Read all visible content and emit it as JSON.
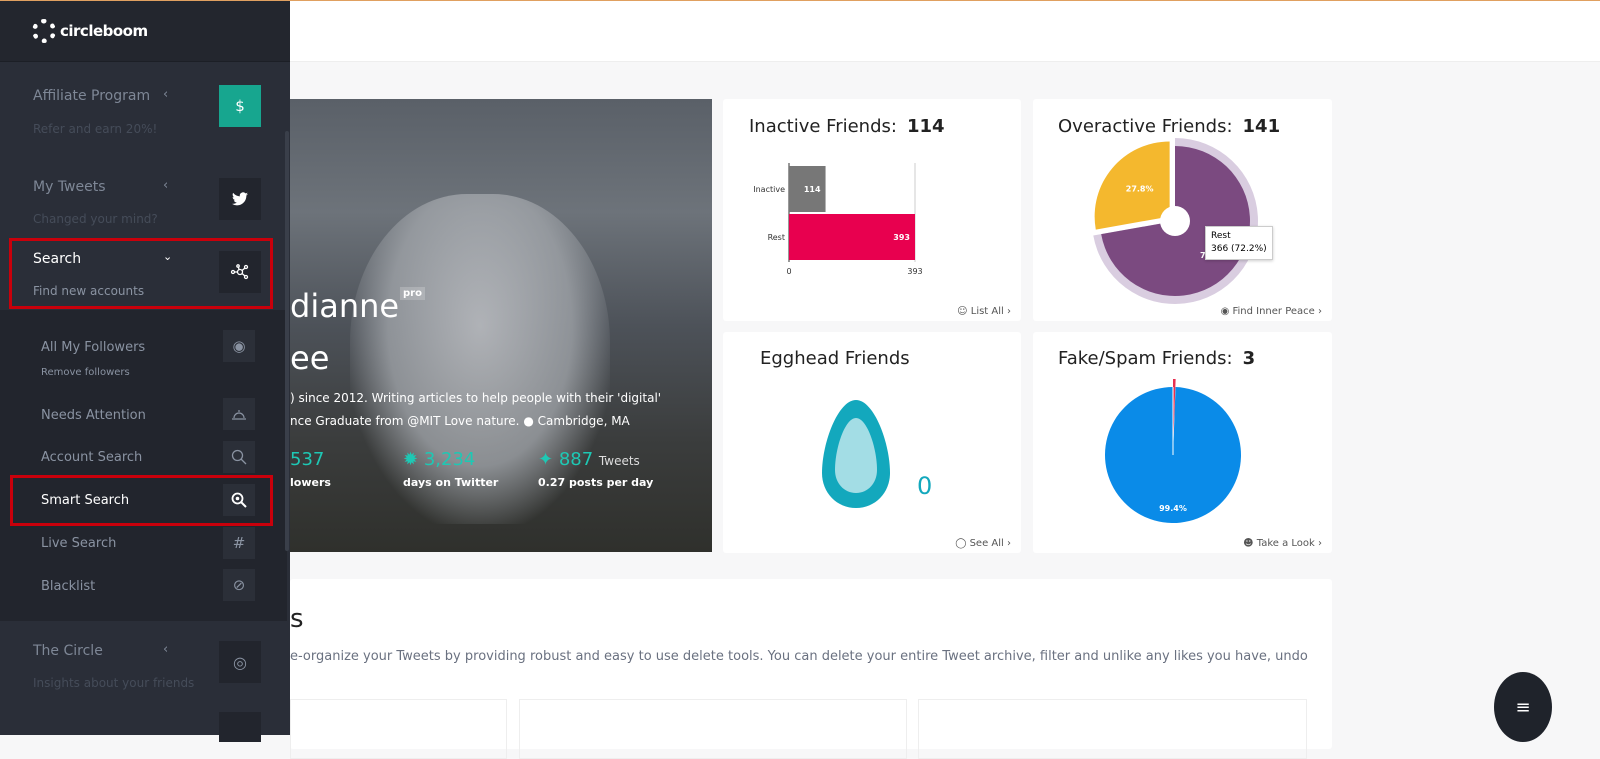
{
  "brand": "circleboom",
  "sidebar": {
    "sections": [
      {
        "title": "Affiliate Program",
        "subtitle": "Refer and earn 20%!",
        "icon": "dollar-badge-icon"
      },
      {
        "title": "My Tweets",
        "subtitle": "Changed your mind?",
        "icon": "twitter-icon"
      },
      {
        "title": "Search",
        "subtitle": "Find new accounts",
        "icon": "network-icon",
        "expanded": true
      },
      {
        "title": "The Circle",
        "subtitle": "Insights about your friends",
        "icon": "target-icon"
      }
    ],
    "search_items": [
      {
        "label": "All My Followers",
        "subtitle": "Remove followers",
        "icon": "eye-icon"
      },
      {
        "label": "Needs Attention",
        "icon": "bell-icon"
      },
      {
        "label": "Account Search",
        "icon": "search-icon"
      },
      {
        "label": "Smart Search",
        "icon": "smart-search-icon",
        "active": true
      },
      {
        "label": "Live Search",
        "icon": "hashtag-icon"
      },
      {
        "label": "Blacklist",
        "icon": "ban-icon"
      }
    ]
  },
  "profile": {
    "name_line1": "dianne",
    "name_line2": "ee",
    "badge": "pro",
    "bio_line1": ") since 2012. Writing articles to help people with their 'digital'",
    "bio_line2": "nce Graduate from @MIT Love nature.",
    "location": "Cambridge, MA",
    "stats": [
      {
        "value": "537",
        "label": "lowers"
      },
      {
        "value": "3,234",
        "label": "days on Twitter"
      },
      {
        "value": "887",
        "unit": "Tweets",
        "label": "0.27 posts per day"
      }
    ],
    "accent": "#1ec8b4"
  },
  "cards": {
    "inactive": {
      "title": "Inactive Friends:",
      "count": "114",
      "link": "List All"
    },
    "overactive": {
      "title": "Overactive Friends:",
      "count": "141",
      "link": "Find Inner Peace",
      "tooltip_title": "Rest",
      "tooltip_value": "366 (72.2%)"
    },
    "egghead": {
      "title": "Egghead Friends",
      "count": "0",
      "link": "See All"
    },
    "fake": {
      "title": "Fake/Spam Friends:",
      "count": "3",
      "link": "Take a Look"
    }
  },
  "chart_data": [
    {
      "type": "bar",
      "orientation": "horizontal",
      "categories": [
        "Inactive",
        "Rest"
      ],
      "values": [
        114,
        393
      ],
      "colors": [
        "#777777",
        "#e8004f"
      ],
      "xlim": [
        0,
        393
      ],
      "xticks": [
        "0",
        "393"
      ]
    },
    {
      "type": "pie",
      "categories": [
        "Overactive",
        "Rest"
      ],
      "values": [
        27.8,
        72.2
      ],
      "labels": [
        "27.8%",
        "72.2%"
      ],
      "colors": [
        "#f4b82e",
        "#7b4a80"
      ]
    },
    {
      "type": "pie",
      "categories": [
        "Fake/Spam",
        "Rest"
      ],
      "values": [
        0.6,
        99.4
      ],
      "labels": [
        "",
        "99.4%"
      ],
      "colors": [
        "#e83050",
        "#0a8be8"
      ]
    }
  ],
  "bottom": {
    "heading_fragment": "s",
    "text": "e-organize your Tweets by providing robust and easy to use delete tools. You can delete your entire Tweet archive, filter and unlike any likes you have, undo"
  }
}
